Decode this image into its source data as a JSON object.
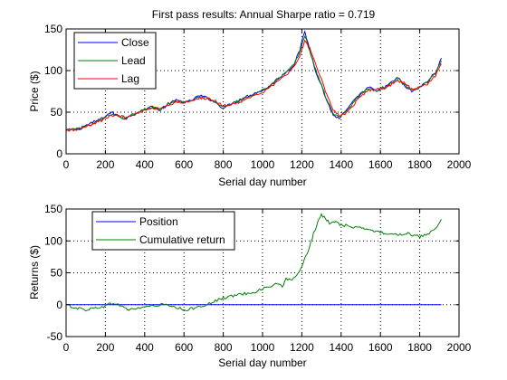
{
  "chart_data": [
    {
      "type": "line",
      "title": "First pass results: Annual Sharpe ratio = 0.719",
      "xlabel": "Serial day number",
      "ylabel": "Price ($)",
      "xlim": [
        0,
        2000
      ],
      "ylim": [
        0,
        150
      ],
      "xticks": [
        0,
        200,
        400,
        600,
        800,
        1000,
        1200,
        1400,
        1600,
        1800,
        2000
      ],
      "yticks": [
        0,
        50,
        100,
        150
      ],
      "grid": true,
      "legend": "top-left",
      "series": [
        {
          "name": "Close",
          "color": "#0000ff",
          "points": [
            [
              0,
              28
            ],
            [
              60,
              30
            ],
            [
              120,
              36
            ],
            [
              180,
              42
            ],
            [
              230,
              50
            ],
            [
              260,
              46
            ],
            [
              300,
              42
            ],
            [
              360,
              50
            ],
            [
              400,
              53
            ],
            [
              440,
              57
            ],
            [
              480,
              52
            ],
            [
              520,
              60
            ],
            [
              560,
              64
            ],
            [
              620,
              62
            ],
            [
              680,
              70
            ],
            [
              720,
              67
            ],
            [
              760,
              62
            ],
            [
              800,
              55
            ],
            [
              840,
              60
            ],
            [
              900,
              67
            ],
            [
              960,
              73
            ],
            [
              1000,
              76
            ],
            [
              1040,
              82
            ],
            [
              1080,
              91
            ],
            [
              1120,
              98
            ],
            [
              1160,
              107
            ],
            [
              1190,
              125
            ],
            [
              1215,
              147
            ],
            [
              1240,
              125
            ],
            [
              1270,
              100
            ],
            [
              1300,
              82
            ],
            [
              1320,
              68
            ],
            [
              1340,
              57
            ],
            [
              1360,
              46
            ],
            [
              1390,
              43
            ],
            [
              1420,
              50
            ],
            [
              1460,
              62
            ],
            [
              1500,
              72
            ],
            [
              1540,
              80
            ],
            [
              1580,
              75
            ],
            [
              1620,
              80
            ],
            [
              1660,
              86
            ],
            [
              1690,
              92
            ],
            [
              1720,
              82
            ],
            [
              1760,
              75
            ],
            [
              1800,
              80
            ],
            [
              1840,
              87
            ],
            [
              1880,
              98
            ],
            [
              1910,
              115
            ]
          ]
        },
        {
          "name": "Lead",
          "color": "#008000",
          "points": [
            [
              0,
              29
            ],
            [
              60,
              30
            ],
            [
              120,
              35
            ],
            [
              180,
              42
            ],
            [
              230,
              48
            ],
            [
              260,
              46
            ],
            [
              300,
              43
            ],
            [
              360,
              49
            ],
            [
              400,
              53
            ],
            [
              440,
              56
            ],
            [
              480,
              53
            ],
            [
              520,
              60
            ],
            [
              560,
              63
            ],
            [
              620,
              62
            ],
            [
              680,
              69
            ],
            [
              720,
              67
            ],
            [
              760,
              62
            ],
            [
              800,
              56
            ],
            [
              840,
              60
            ],
            [
              900,
              66
            ],
            [
              960,
              72
            ],
            [
              1000,
              76
            ],
            [
              1040,
              82
            ],
            [
              1080,
              90
            ],
            [
              1120,
              97
            ],
            [
              1160,
              107
            ],
            [
              1190,
              122
            ],
            [
              1215,
              142
            ],
            [
              1240,
              124
            ],
            [
              1270,
              101
            ],
            [
              1300,
              83
            ],
            [
              1320,
              69
            ],
            [
              1340,
              58
            ],
            [
              1360,
              48
            ],
            [
              1390,
              44
            ],
            [
              1420,
              50
            ],
            [
              1460,
              61
            ],
            [
              1500,
              72
            ],
            [
              1540,
              79
            ],
            [
              1580,
              76
            ],
            [
              1620,
              80
            ],
            [
              1660,
              85
            ],
            [
              1690,
              90
            ],
            [
              1720,
              83
            ],
            [
              1760,
              76
            ],
            [
              1800,
              80
            ],
            [
              1840,
              86
            ],
            [
              1880,
              97
            ],
            [
              1910,
              112
            ]
          ]
        },
        {
          "name": "Lag",
          "color": "#ff0000",
          "points": [
            [
              0,
              28
            ],
            [
              60,
              29
            ],
            [
              120,
              34
            ],
            [
              180,
              40
            ],
            [
              230,
              46
            ],
            [
              260,
              46
            ],
            [
              300,
              44
            ],
            [
              360,
              48
            ],
            [
              400,
              52
            ],
            [
              440,
              55
            ],
            [
              480,
              54
            ],
            [
              520,
              58
            ],
            [
              560,
              62
            ],
            [
              620,
              62
            ],
            [
              680,
              67
            ],
            [
              720,
              67
            ],
            [
              760,
              63
            ],
            [
              800,
              58
            ],
            [
              840,
              59
            ],
            [
              900,
              64
            ],
            [
              960,
              70
            ],
            [
              1000,
              74
            ],
            [
              1040,
              80
            ],
            [
              1080,
              87
            ],
            [
              1120,
              95
            ],
            [
              1160,
              104
            ],
            [
              1190,
              117
            ],
            [
              1215,
              135
            ],
            [
              1240,
              128
            ],
            [
              1270,
              108
            ],
            [
              1300,
              90
            ],
            [
              1320,
              76
            ],
            [
              1340,
              63
            ],
            [
              1360,
              52
            ],
            [
              1390,
              46
            ],
            [
              1420,
              48
            ],
            [
              1460,
              58
            ],
            [
              1500,
              69
            ],
            [
              1540,
              77
            ],
            [
              1580,
              77
            ],
            [
              1620,
              79
            ],
            [
              1660,
              84
            ],
            [
              1690,
              88
            ],
            [
              1720,
              85
            ],
            [
              1760,
              78
            ],
            [
              1800,
              79
            ],
            [
              1840,
              84
            ],
            [
              1880,
              94
            ],
            [
              1910,
              108
            ]
          ]
        }
      ]
    },
    {
      "type": "line",
      "title": "",
      "xlabel": "Serial day number",
      "ylabel": "Returns ($)",
      "xlim": [
        0,
        2000
      ],
      "ylim": [
        -50,
        150
      ],
      "xticks": [
        0,
        200,
        400,
        600,
        800,
        1000,
        1200,
        1400,
        1600,
        1800,
        2000
      ],
      "yticks": [
        -50,
        0,
        50,
        100,
        150
      ],
      "grid": true,
      "legend": "top-left",
      "series": [
        {
          "name": "Position",
          "color": "#0000ff",
          "points": [
            [
              0,
              0
            ],
            [
              1910,
              0
            ]
          ]
        },
        {
          "name": "Cumulative return",
          "color": "#008000",
          "points": [
            [
              0,
              0
            ],
            [
              50,
              -5
            ],
            [
              100,
              -8
            ],
            [
              150,
              -5
            ],
            [
              200,
              -2
            ],
            [
              240,
              3
            ],
            [
              280,
              -2
            ],
            [
              320,
              -8
            ],
            [
              360,
              -6
            ],
            [
              400,
              -3
            ],
            [
              450,
              -2
            ],
            [
              500,
              1
            ],
            [
              540,
              -4
            ],
            [
              580,
              -6
            ],
            [
              600,
              -10
            ],
            [
              640,
              -6
            ],
            [
              680,
              -2
            ],
            [
              720,
              0
            ],
            [
              760,
              6
            ],
            [
              800,
              10
            ],
            [
              850,
              14
            ],
            [
              900,
              17
            ],
            [
              950,
              19
            ],
            [
              1000,
              25
            ],
            [
              1050,
              30
            ],
            [
              1090,
              33
            ],
            [
              1100,
              28
            ],
            [
              1120,
              40
            ],
            [
              1150,
              37
            ],
            [
              1180,
              50
            ],
            [
              1200,
              60
            ],
            [
              1220,
              75
            ],
            [
              1240,
              92
            ],
            [
              1260,
              112
            ],
            [
              1280,
              128
            ],
            [
              1300,
              140
            ],
            [
              1320,
              135
            ],
            [
              1340,
              128
            ],
            [
              1360,
              132
            ],
            [
              1380,
              128
            ],
            [
              1400,
              125
            ],
            [
              1440,
              124
            ],
            [
              1480,
              120
            ],
            [
              1520,
              120
            ],
            [
              1560,
              115
            ],
            [
              1600,
              114
            ],
            [
              1640,
              110
            ],
            [
              1680,
              111
            ],
            [
              1700,
              110
            ],
            [
              1740,
              112
            ],
            [
              1780,
              108
            ],
            [
              1800,
              106
            ],
            [
              1840,
              110
            ],
            [
              1880,
              118
            ],
            [
              1910,
              134
            ]
          ]
        }
      ]
    }
  ]
}
